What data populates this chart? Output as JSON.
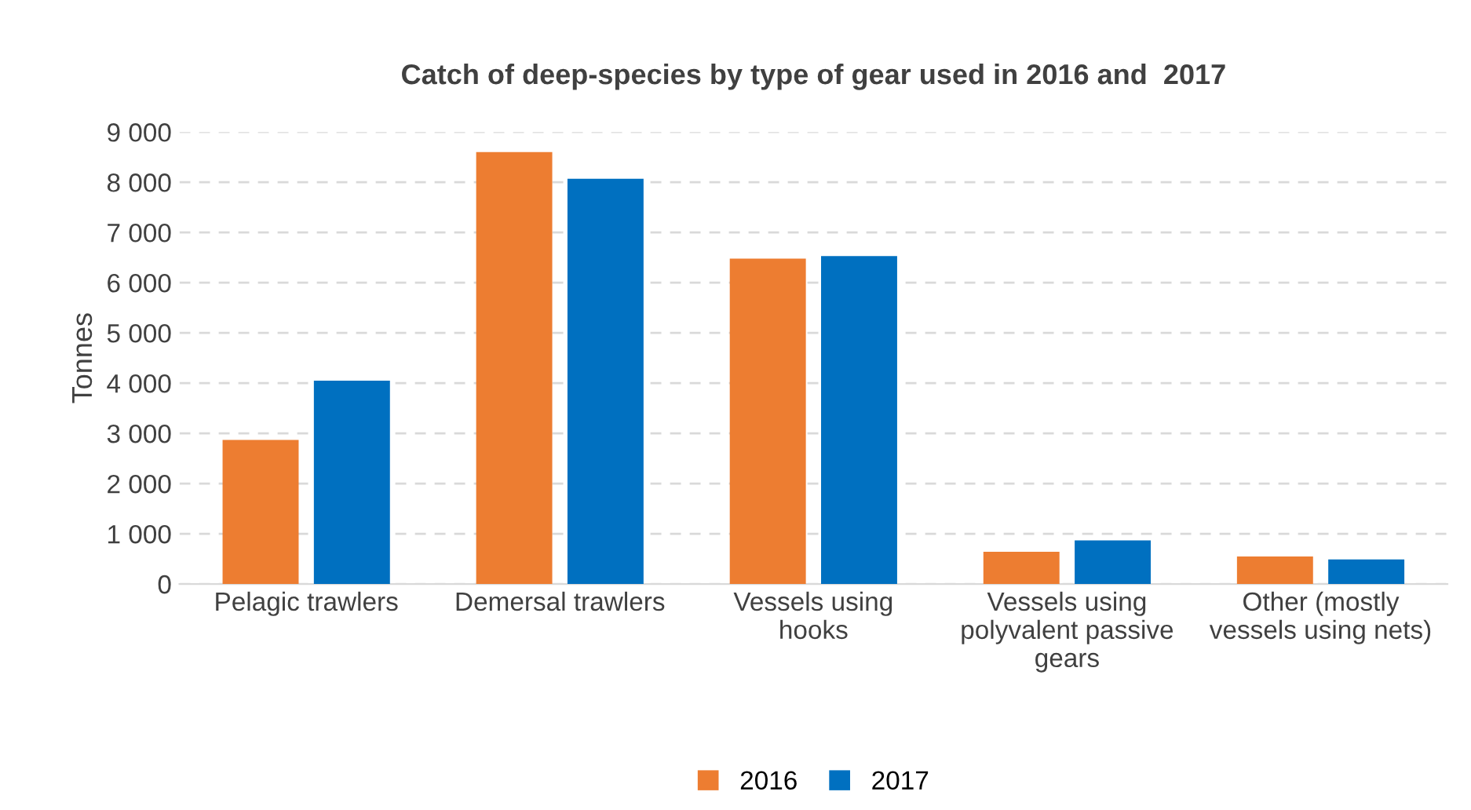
{
  "chart_data": {
    "type": "bar",
    "title": "Catch of deep-species by type of gear used in 2016 and  2017",
    "ylabel": "Tonnes",
    "categories": [
      "Pelagic trawlers",
      "Demersal trawlers",
      "Vessels using\nhooks",
      "Vessels using\npolyvalent passive\ngears",
      "Other (mostly\nvessels using nets)"
    ],
    "series": [
      {
        "name": "2016",
        "color": "#ed7d31",
        "values": [
          2870,
          8600,
          6480,
          640,
          550
        ]
      },
      {
        "name": "2017",
        "color": "#0070c0",
        "values": [
          4050,
          8070,
          6530,
          870,
          490
        ]
      }
    ],
    "ylim": [
      0,
      9000
    ],
    "yticks": [
      {
        "value": 0,
        "label": "0"
      },
      {
        "value": 1000,
        "label": "1 000"
      },
      {
        "value": 2000,
        "label": "2 000"
      },
      {
        "value": 3000,
        "label": "3 000"
      },
      {
        "value": 4000,
        "label": "4 000"
      },
      {
        "value": 5000,
        "label": "5 000"
      },
      {
        "value": 6000,
        "label": "6 000"
      },
      {
        "value": 7000,
        "label": "7 000"
      },
      {
        "value": 8000,
        "label": "8 000"
      },
      {
        "value": 9000,
        "label": "9 000"
      }
    ],
    "grid": "y",
    "legend": "bottom"
  }
}
